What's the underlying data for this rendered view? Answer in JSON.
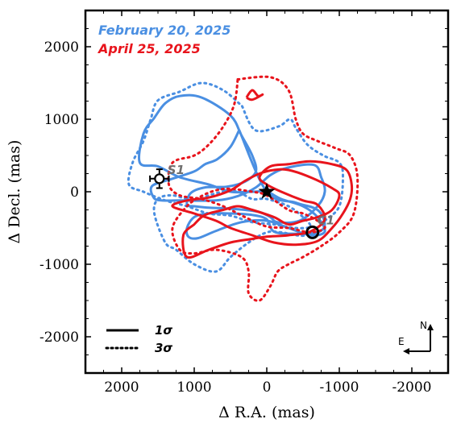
{
  "chart_data": {
    "type": "contour",
    "xlabel": "Δ R.A. (mas)",
    "ylabel": "Δ Decl. (mas)",
    "xlim": [
      2500,
      -2500
    ],
    "ylim": [
      -2500,
      2500
    ],
    "xticks": [
      2000,
      1000,
      0,
      -1000,
      -2000
    ],
    "yticks": [
      2000,
      1000,
      0,
      -1000,
      -2000
    ],
    "xtick_labels": [
      "2000",
      "1000",
      "0",
      "-1000",
      "-2000"
    ],
    "ytick_labels": [
      "2000",
      "1000",
      "0",
      "-1000",
      "-2000"
    ],
    "grid": false,
    "legend_position": "top-left",
    "series": [
      {
        "name": "February 20, 2025",
        "color": "#4a8fe2",
        "contours": [
          {
            "level": "1σ",
            "style": "solid",
            "points": [
              [
                380,
                850
              ],
              [
                500,
                620
              ],
              [
                680,
                450
              ],
              [
                850,
                380
              ],
              [
                1000,
                280
              ],
              [
                1300,
                180
              ],
              [
                1580,
                80
              ],
              [
                1560,
                -80
              ],
              [
                1450,
                -120
              ],
              [
                1200,
                -120
              ],
              [
                700,
                -120
              ],
              [
                400,
                -60
              ],
              [
                150,
                60
              ],
              [
                -50,
                230
              ],
              [
                -280,
                330
              ],
              [
                -650,
                370
              ],
              [
                -750,
                200
              ],
              [
                -800,
                0
              ],
              [
                -700,
                -200
              ],
              [
                -450,
                -400
              ],
              [
                -150,
                -420
              ],
              [
                -50,
                -350
              ],
              [
                100,
                -280
              ],
              [
                300,
                -250
              ],
              [
                550,
                -230
              ],
              [
                800,
                -220
              ],
              [
                1000,
                -200
              ],
              [
                1100,
                -180
              ],
              [
                1050,
                -20
              ],
              [
                850,
                60
              ],
              [
                550,
                70
              ],
              [
                300,
                140
              ],
              [
                150,
                280
              ],
              [
                200,
                500
              ],
              [
                350,
                780
              ],
              [
                500,
                1050
              ],
              [
                900,
                1300
              ],
              [
                1200,
                1320
              ],
              [
                1400,
                1220
              ],
              [
                1550,
                1020
              ],
              [
                1700,
                800
              ],
              [
                1750,
                400
              ],
              [
                1500,
                350
              ],
              [
                1200,
                200
              ],
              [
                800,
                100
              ],
              [
                500,
                0
              ],
              [
                200,
                0
              ],
              [
                0,
                0
              ],
              [
                -200,
                -100
              ],
              [
                -500,
                -200
              ],
              [
                -700,
                -350
              ],
              [
                -800,
                -550
              ],
              [
                -600,
                -600
              ],
              [
                -300,
                -500
              ],
              [
                0,
                -400
              ],
              [
                350,
                -420
              ],
              [
                700,
                -540
              ],
              [
                950,
                -640
              ],
              [
                1080,
                -620
              ],
              [
                1100,
                -500
              ],
              [
                1000,
                -350
              ],
              [
                800,
                -300
              ],
              [
                500,
                -300
              ],
              [
                200,
                -320
              ],
              [
                0,
                -380
              ],
              [
                -100,
                -550
              ],
              [
                -400,
                -580
              ],
              [
                -700,
                -560
              ],
              [
                -800,
                -450
              ],
              [
                -700,
                -250
              ],
              [
                -400,
                -150
              ],
              [
                0,
                0
              ],
              [
                380,
                850
              ]
            ]
          },
          {
            "level": "3σ",
            "style": "dotted",
            "points": [
              [
                340,
                1180
              ],
              [
                160,
                850
              ],
              [
                -160,
                900
              ],
              [
                -320,
                1000
              ],
              [
                -400,
                880
              ],
              [
                -560,
                650
              ],
              [
                -780,
                500
              ],
              [
                -1000,
                400
              ],
              [
                -1050,
                200
              ],
              [
                -1000,
                -200
              ],
              [
                -800,
                -400
              ],
              [
                -540,
                -600
              ],
              [
                -200,
                -560
              ],
              [
                0,
                -560
              ],
              [
                250,
                -700
              ],
              [
                500,
                -900
              ],
              [
                700,
                -1100
              ],
              [
                1000,
                -1000
              ],
              [
                1250,
                -800
              ],
              [
                1400,
                -700
              ],
              [
                1550,
                -300
              ],
              [
                1500,
                -100
              ],
              [
                1300,
                -50
              ],
              [
                1000,
                -120
              ],
              [
                800,
                -50
              ],
              [
                600,
                0
              ],
              [
                400,
                0
              ],
              [
                200,
                -100
              ],
              [
                0,
                -100
              ],
              [
                -300,
                -200
              ],
              [
                -500,
                -350
              ],
              [
                -600,
                -480
              ],
              [
                -400,
                -500
              ],
              [
                -100,
                -450
              ],
              [
                200,
                -420
              ],
              [
                500,
                -330
              ],
              [
                800,
                -300
              ],
              [
                1100,
                -200
              ],
              [
                1400,
                -120
              ],
              [
                1700,
                0
              ],
              [
                1900,
                100
              ],
              [
                1850,
                400
              ],
              [
                1700,
                700
              ],
              [
                1600,
                1000
              ],
              [
                1500,
                1260
              ],
              [
                1200,
                1380
              ],
              [
                900,
                1500
              ],
              [
                600,
                1400
              ],
              [
                340,
                1180
              ]
            ]
          }
        ]
      },
      {
        "name": "April 25, 2025",
        "color": "#e8141c",
        "contours": [
          {
            "level": "1σ",
            "style": "solid",
            "points": [
              [
                1000,
                -450
              ],
              [
                900,
                -350
              ],
              [
                800,
                -300
              ],
              [
                600,
                -250
              ],
              [
                400,
                -200
              ],
              [
                200,
                -250
              ],
              [
                -100,
                -350
              ],
              [
                -300,
                -450
              ],
              [
                -500,
                -400
              ],
              [
                -700,
                -350
              ],
              [
                -900,
                -250
              ],
              [
                -1000,
                -50
              ],
              [
                -900,
                50
              ],
              [
                -600,
                200
              ],
              [
                -300,
                300
              ],
              [
                -100,
                300
              ],
              [
                100,
                250
              ],
              [
                300,
                150
              ],
              [
                500,
                20
              ],
              [
                800,
                -80
              ],
              [
                1100,
                -120
              ],
              [
                1300,
                -200
              ],
              [
                1000,
                -300
              ],
              [
                700,
                -400
              ],
              [
                500,
                -500
              ],
              [
                200,
                -600
              ],
              [
                -100,
                -700
              ],
              [
                -400,
                -730
              ],
              [
                -700,
                -680
              ],
              [
                -900,
                -500
              ],
              [
                -1050,
                -300
              ],
              [
                -1150,
                -100
              ],
              [
                -1170,
                100
              ],
              [
                -1100,
                300
              ],
              [
                -900,
                380
              ],
              [
                -600,
                420
              ],
              [
                -300,
                380
              ],
              [
                -50,
                350
              ],
              [
                100,
                200
              ],
              [
                0,
                100
              ],
              [
                -200,
                0
              ],
              [
                -500,
                -120
              ],
              [
                -700,
                -180
              ],
              [
                -800,
                -380
              ],
              [
                -600,
                -550
              ],
              [
                -300,
                -600
              ],
              [
                0,
                -620
              ],
              [
                200,
                -650
              ],
              [
                500,
                -700
              ],
              [
                800,
                -800
              ],
              [
                1100,
                -900
              ],
              [
                1150,
                -600
              ],
              [
                1000,
                -450
              ]
            ]
          },
          {
            "level": "1σ",
            "style": "solid",
            "points": [
              [
                280,
                1300
              ],
              [
                200,
                1400
              ],
              [
                120,
                1320
              ],
              [
                60,
                1340
              ],
              [
                200,
                1270
              ],
              [
                280,
                1300
              ]
            ]
          },
          {
            "level": "3σ",
            "style": "dotted",
            "points": [
              [
                400,
                1550
              ],
              [
                -50,
                1580
              ],
              [
                -300,
                1400
              ],
              [
                -400,
                1000
              ],
              [
                -500,
                800
              ],
              [
                -700,
                700
              ],
              [
                -950,
                600
              ],
              [
                -1150,
                500
              ],
              [
                -1250,
                200
              ],
              [
                -1200,
                -300
              ],
              [
                -1000,
                -560
              ],
              [
                -750,
                -750
              ],
              [
                -500,
                -900
              ],
              [
                -300,
                -1000
              ],
              [
                -150,
                -1100
              ],
              [
                -50,
                -1300
              ],
              [
                100,
                -1500
              ],
              [
                250,
                -1400
              ],
              [
                250,
                -1100
              ],
              [
                350,
                -900
              ],
              [
                700,
                -800
              ],
              [
                1000,
                -850
              ],
              [
                1200,
                -800
              ],
              [
                1300,
                -500
              ],
              [
                1100,
                -200
              ],
              [
                900,
                -60
              ],
              [
                700,
                20
              ],
              [
                500,
                40
              ],
              [
                200,
                0
              ],
              [
                0,
                -50
              ],
              [
                -300,
                -250
              ],
              [
                -500,
                -300
              ],
              [
                -700,
                -400
              ],
              [
                -800,
                -500
              ],
              [
                -600,
                -560
              ],
              [
                -300,
                -500
              ],
              [
                0,
                -480
              ],
              [
                300,
                -350
              ],
              [
                600,
                -200
              ],
              [
                900,
                -100
              ],
              [
                1200,
                -50
              ],
              [
                1350,
                100
              ],
              [
                1300,
                400
              ],
              [
                1000,
                500
              ],
              [
                800,
                650
              ],
              [
                600,
                900
              ],
              [
                450,
                1200
              ],
              [
                400,
                1550
              ]
            ]
          }
        ]
      }
    ],
    "markers": [
      {
        "name": "primary star",
        "symbol": "star",
        "x": 0,
        "y": 0,
        "label": ""
      },
      {
        "name": "S1",
        "symbol": "open-circle-with-errorbars",
        "x": 1480,
        "y": 180,
        "xerr": 130,
        "yerr": 130,
        "label": "S1"
      },
      {
        "name": "C1",
        "symbol": "open-circle",
        "x": -630,
        "y": -560,
        "label": "C1"
      }
    ],
    "legend_lines": [
      {
        "label": "1σ",
        "style": "solid"
      },
      {
        "label": "3σ",
        "style": "dotted"
      }
    ],
    "compass": {
      "north": "N",
      "east": "E"
    }
  }
}
